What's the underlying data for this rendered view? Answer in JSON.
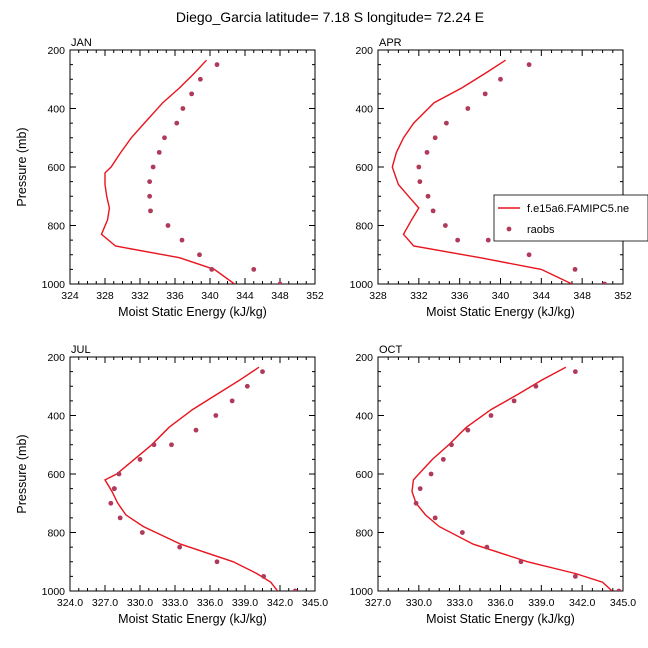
{
  "title": "Diego_Garcia  latitude= 7.18 S longitude= 72.24 E",
  "colors": {
    "model": "#e8141e",
    "obs": "#b03a5a",
    "axis": "#000000"
  },
  "chart_data": [
    {
      "type": "line",
      "panel": "JAN",
      "xlabel": "Moist Static Energy (kJ/kg)",
      "ylabel": "Pressure (mb)",
      "xlim": [
        324,
        352
      ],
      "ylim": [
        200,
        1000
      ],
      "y_reversed": true,
      "xticks": [
        324,
        328,
        332,
        336,
        340,
        344,
        348,
        352
      ],
      "xtick_labels": [
        "324",
        "328",
        "332",
        "336",
        "340",
        "344",
        "348",
        "352"
      ],
      "yticks": [
        200,
        400,
        600,
        800,
        1000
      ],
      "ytick_labels": [
        "200",
        "400",
        "600",
        "800",
        "1000"
      ],
      "series": [
        {
          "name": "f.e15a6.FAMIPC5.ne",
          "style": "line",
          "x": [
            339.6,
            338.2,
            336.5,
            334.6,
            332.5,
            331.0,
            329.8,
            328.7,
            328.0,
            328.0,
            328.2,
            328.5,
            328.3,
            327.6,
            329.2,
            336.5,
            340.5,
            342.8
          ],
          "y": [
            235,
            280,
            330,
            380,
            450,
            500,
            550,
            600,
            620,
            660,
            700,
            740,
            780,
            830,
            870,
            910,
            950,
            1000
          ]
        },
        {
          "name": "raobs",
          "style": "markers",
          "x": [
            340.8,
            338.9,
            337.9,
            336.9,
            336.2,
            334.8,
            334.2,
            333.5,
            333.1,
            333.1,
            333.2,
            335.2,
            336.8,
            338.8,
            340.2,
            345.0,
            348.0
          ],
          "y": [
            250,
            300,
            350,
            400,
            450,
            500,
            550,
            600,
            650,
            700,
            750,
            800,
            850,
            900,
            950,
            950,
            1000
          ]
        }
      ]
    },
    {
      "type": "line",
      "panel": "APR",
      "xlabel": "Moist Static Energy (kJ/kg)",
      "ylabel": "",
      "xlim": [
        328,
        352
      ],
      "ylim": [
        200,
        1000
      ],
      "y_reversed": true,
      "xticks": [
        328,
        332,
        336,
        340,
        344,
        348,
        352
      ],
      "xtick_labels": [
        "328",
        "332",
        "336",
        "340",
        "344",
        "348",
        "352"
      ],
      "yticks": [
        200,
        400,
        600,
        800,
        1000
      ],
      "ytick_labels": [
        "200",
        "400",
        "600",
        "800",
        "1000"
      ],
      "legend": {
        "position": "right",
        "entries": [
          "f.e15a6.FAMIPC5.ne",
          "raobs"
        ]
      },
      "series": [
        {
          "name": "f.e15a6.FAMIPC5.ne",
          "style": "line",
          "x": [
            340.5,
            338.5,
            336.2,
            333.5,
            331.5,
            330.5,
            329.8,
            329.4,
            329.6,
            330.0,
            331.0,
            332.0,
            331.3,
            330.5,
            331.5,
            338.0,
            344.0,
            347.0
          ],
          "y": [
            235,
            280,
            330,
            380,
            450,
            500,
            550,
            600,
            620,
            660,
            700,
            740,
            780,
            830,
            870,
            910,
            950,
            1000
          ]
        },
        {
          "name": "raobs",
          "style": "markers",
          "x": [
            342.8,
            340.0,
            338.5,
            336.8,
            334.7,
            333.6,
            332.8,
            332.0,
            332.1,
            332.9,
            333.4,
            334.6,
            335.8,
            338.8,
            342.8,
            347.3,
            350.2
          ],
          "y": [
            250,
            300,
            350,
            400,
            450,
            500,
            550,
            600,
            650,
            700,
            750,
            800,
            850,
            850,
            900,
            950,
            1000
          ]
        }
      ]
    },
    {
      "type": "line",
      "panel": "JUL",
      "xlabel": "Moist Static Energy (kJ/kg)",
      "ylabel": "Pressure (mb)",
      "xlim": [
        324,
        345
      ],
      "ylim": [
        200,
        1000
      ],
      "y_reversed": true,
      "xticks": [
        324,
        327,
        330,
        333,
        336,
        339,
        342,
        345
      ],
      "xtick_labels": [
        "324.0",
        "327.0",
        "330.0",
        "333.0",
        "336.0",
        "339.0",
        "342.0",
        "345.0"
      ],
      "yticks": [
        200,
        400,
        600,
        800,
        1000
      ],
      "ytick_labels": [
        "200",
        "400",
        "600",
        "800",
        "1000"
      ],
      "series": [
        {
          "name": "f.e15a6.FAMIPC5.ne",
          "style": "line",
          "x": [
            340.2,
            338.5,
            336.5,
            334.5,
            332.5,
            331.0,
            329.5,
            328.0,
            327.0,
            327.6,
            328.1,
            328.8,
            330.3,
            333.5,
            338.0,
            340.0,
            341.2,
            341.8
          ],
          "y": [
            235,
            280,
            330,
            380,
            440,
            500,
            550,
            600,
            620,
            660,
            700,
            740,
            780,
            840,
            900,
            940,
            970,
            1000
          ]
        },
        {
          "name": "raobs",
          "style": "markers",
          "x": [
            340.5,
            339.2,
            337.9,
            336.5,
            334.8,
            332.7,
            330.0,
            331.2,
            328.2,
            327.8,
            327.5,
            327.8,
            328.3,
            330.2,
            333.4,
            336.6,
            340.6,
            343.3
          ],
          "y": [
            250,
            300,
            350,
            400,
            450,
            500,
            550,
            500,
            600,
            650,
            700,
            650,
            750,
            800,
            850,
            900,
            950,
            1000
          ]
        }
      ]
    },
    {
      "type": "line",
      "panel": "OCT",
      "xlabel": "Moist Static Energy (kJ/kg)",
      "ylabel": "",
      "xlim": [
        327,
        345
      ],
      "ylim": [
        200,
        1000
      ],
      "y_reversed": true,
      "xticks": [
        327,
        330,
        333,
        336,
        339,
        342,
        345
      ],
      "xtick_labels": [
        "327.0",
        "330.0",
        "333.0",
        "336.0",
        "339.0",
        "342.0",
        "345.0"
      ],
      "yticks": [
        200,
        400,
        600,
        800,
        1000
      ],
      "ytick_labels": [
        "200",
        "400",
        "600",
        "800",
        "1000"
      ],
      "series": [
        {
          "name": "f.e15a6.FAMIPC5.ne",
          "style": "line",
          "x": [
            340.8,
            339.0,
            337.2,
            335.3,
            333.5,
            332.2,
            331.0,
            330.0,
            329.6,
            329.5,
            329.8,
            330.5,
            331.5,
            334.0,
            338.0,
            341.5,
            343.5,
            344.2
          ],
          "y": [
            235,
            280,
            330,
            380,
            440,
            500,
            550,
            600,
            620,
            660,
            700,
            740,
            780,
            840,
            900,
            940,
            970,
            1000
          ]
        },
        {
          "name": "raobs",
          "style": "markers",
          "x": [
            341.5,
            338.6,
            337.0,
            335.3,
            333.6,
            332.4,
            331.8,
            330.9,
            330.1,
            329.8,
            331.2,
            333.2,
            335.0,
            337.5,
            341.5,
            344.7
          ],
          "y": [
            250,
            300,
            350,
            400,
            450,
            500,
            550,
            600,
            650,
            700,
            750,
            800,
            850,
            900,
            950,
            1000
          ]
        }
      ]
    }
  ]
}
